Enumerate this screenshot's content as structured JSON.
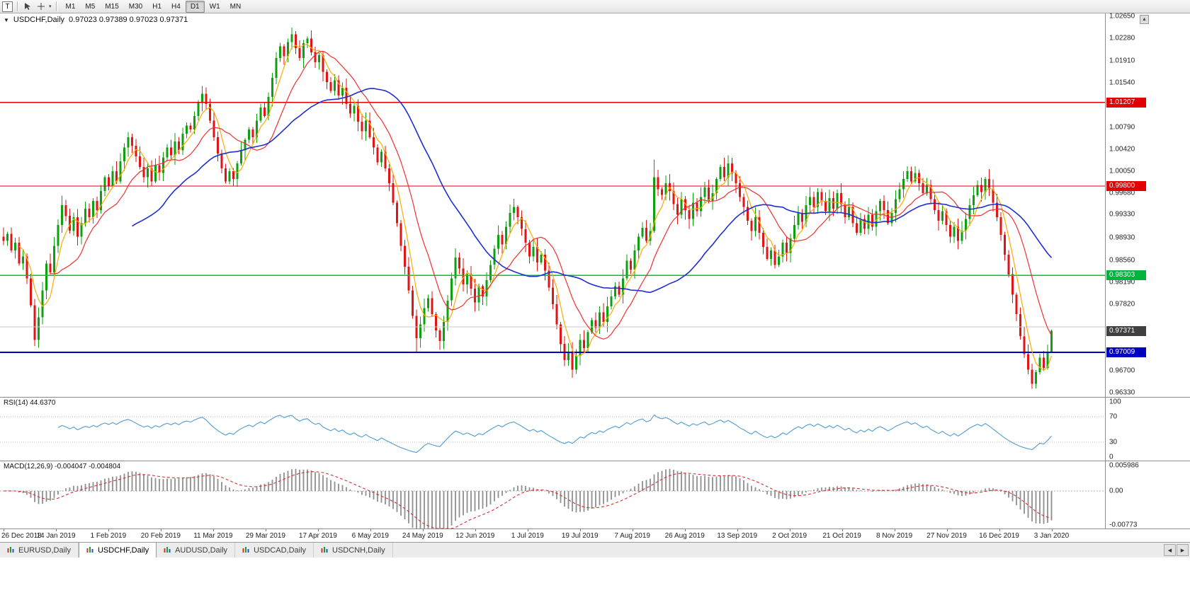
{
  "toolbar": {
    "tool_button_label": "T",
    "timeframes": [
      "M1",
      "M5",
      "M15",
      "M30",
      "H1",
      "H4",
      "D1",
      "W1",
      "MN"
    ],
    "active_timeframe": "D1",
    "corner_button": "▲"
  },
  "chart": {
    "header": {
      "dropdown_glyph": "▼",
      "symbol_period": "USDCHF,Daily",
      "ohlc": "0.97023 0.97389 0.97023 0.97371"
    },
    "colors": {
      "up": "#0fa012",
      "down": "#e01515",
      "ma_fast": "#ffaa00",
      "ma_medium": "#f03030",
      "ma_slow": "#1f2fd0",
      "level_red": "#e00000",
      "level_green": "#00c432",
      "level_blue": "#0000c0",
      "current_badge": "#404040",
      "rsi_line": "#4f9bd5",
      "macd_hist": "#8f8f8f",
      "macd_signal": "#d43131"
    },
    "y_range": [
      0.9625,
      1.027
    ],
    "price_axis_labels": [
      "1.02650",
      "1.02280",
      "1.01910",
      "1.01540",
      "1.00790",
      "1.00420",
      "1.00050",
      "0.99680",
      "0.99330",
      "0.98930",
      "0.98560",
      "0.98190",
      "0.97820",
      "0.96700",
      "0.96330"
    ],
    "levels": [
      {
        "name": "resistance-line-1",
        "price": 1.01207,
        "label": "1.01207",
        "type": "red"
      },
      {
        "name": "resistance-line-2",
        "price": 0.998,
        "label": "0.99800",
        "type": "red"
      },
      {
        "name": "support-line-green",
        "price": 0.98303,
        "label": "0.98303",
        "type": "green"
      },
      {
        "name": "support-line-blue",
        "price": 0.97009,
        "label": "0.97009",
        "type": "blue"
      },
      {
        "name": "gray-line",
        "price": 0.9744,
        "label": "",
        "type": "gray"
      }
    ],
    "current_price": {
      "price": 0.97371,
      "label": "0.97371"
    }
  },
  "chart_data": {
    "type": "candlestick",
    "symbol": "USDCHF",
    "period": "Daily",
    "first_open": 0.9895,
    "closes": [
      0.9888,
      0.99,
      0.9872,
      0.9885,
      0.985,
      0.9862,
      0.9825,
      0.978,
      0.9722,
      0.976,
      0.9805,
      0.985,
      0.9835,
      0.988,
      0.9915,
      0.9948,
      0.993,
      0.9905,
      0.9928,
      0.9895,
      0.9918,
      0.9942,
      0.9928,
      0.9955,
      0.994,
      0.9972,
      0.9995,
      0.998,
      1.0005,
      0.9988,
      1.0022,
      1.0045,
      1.0062,
      1.0048,
      1.003,
      1.0012,
      0.9995,
      1.001,
      0.9988,
      1.0015,
      1.0002,
      1.0028,
      1.0045,
      1.0032,
      1.0055,
      1.004,
      1.0068,
      1.0082,
      1.0075,
      1.0098,
      1.012,
      1.0135,
      1.0118,
      1.009,
      1.0062,
      1.0035,
      1.001,
      0.9988,
      1.0005,
      0.9992,
      1.0018,
      1.004,
      1.0058,
      1.0075,
      1.0062,
      1.009,
      1.0112,
      1.0098,
      1.013,
      1.0162,
      1.0195,
      1.0215,
      1.0198,
      1.0222,
      1.0235,
      1.0212,
      1.0195,
      1.022,
      1.0228,
      1.0205,
      1.0188,
      1.02,
      1.0172,
      1.0155,
      1.014,
      1.0158,
      1.0132,
      1.0145,
      1.0118,
      1.0102,
      1.0115,
      1.0088,
      1.0072,
      1.009,
      1.0062,
      1.0045,
      1.002,
      1.0038,
      1.001,
      0.9985,
      0.9952,
      0.9918,
      0.988,
      0.9845,
      0.9805,
      0.9762,
      0.9725,
      0.9748,
      0.9775,
      0.9792,
      0.9765,
      0.9738,
      0.972,
      0.9752,
      0.9788,
      0.9825,
      0.986,
      0.9842,
      0.9815,
      0.9832,
      0.9808,
      0.9785,
      0.9812,
      0.9795,
      0.9822,
      0.9848,
      0.9875,
      0.9898,
      0.9882,
      0.9912,
      0.9935,
      0.9945,
      0.9928,
      0.9908,
      0.9885,
      0.9862,
      0.9878,
      0.9852,
      0.9865,
      0.9838,
      0.981,
      0.9782,
      0.9748,
      0.9715,
      0.9688,
      0.9702,
      0.9672,
      0.9695,
      0.9722,
      0.9708,
      0.9735,
      0.9755,
      0.9742,
      0.9768,
      0.9752,
      0.9778,
      0.9795,
      0.9812,
      0.9798,
      0.9825,
      0.9855,
      0.984,
      0.9872,
      0.9895,
      0.991,
      0.9888,
      0.9905,
      0.9995,
      0.9975,
      0.9965,
      0.9985,
      0.9972,
      0.995,
      0.9932,
      0.9958,
      0.994,
      0.9925,
      0.9952,
      0.9938,
      0.9962,
      0.9978,
      0.9955,
      0.9968,
      0.9992,
      1.0012,
      0.9995,
      1.0018,
      1.0002,
      0.9985,
      0.9962,
      0.9945,
      0.9922,
      0.9905,
      0.9928,
      0.9902,
      0.9878,
      0.9858,
      0.9872,
      0.9848,
      0.9862,
      0.9885,
      0.9868,
      0.9892,
      0.9915,
      0.9935,
      0.992,
      0.9948,
      0.9962,
      0.9945,
      0.997,
      0.9955,
      0.9938,
      0.996,
      0.9942,
      0.9968,
      0.995,
      0.9928,
      0.9945,
      0.9918,
      0.9902,
      0.9925,
      0.9908,
      0.9932,
      0.9912,
      0.9938,
      0.9955,
      0.994,
      0.9918,
      0.9935,
      0.9958,
      0.9975,
      0.9992,
      1.0005,
      0.9988,
      1.0002,
      0.9985,
      0.9968,
      0.9982,
      0.9958,
      0.994,
      0.9922,
      0.9938,
      0.9915,
      0.9895,
      0.9912,
      0.9888,
      0.9905,
      0.9925,
      0.9948,
      0.9965,
      0.9982,
      0.997,
      0.9992,
      0.9975,
      0.9952,
      0.9928,
      0.9898,
      0.9865,
      0.9832,
      0.9798,
      0.9765,
      0.9728,
      0.9698,
      0.9672,
      0.9648,
      0.9668,
      0.9692,
      0.9675,
      0.97023,
      0.97371
    ],
    "last_candle": {
      "open": 0.97023,
      "high": 0.97389,
      "low": 0.97023,
      "close": 0.97371
    },
    "high_overrides": {
      "51": 1.0148,
      "74": 1.0246,
      "167": 1.0025,
      "186": 1.0032
    },
    "low_overrides": {
      "8": 0.9712,
      "106": 0.97,
      "112": 0.9705,
      "146": 0.9658,
      "264": 0.964
    },
    "overlays": [
      {
        "name": "ma-fast",
        "period": 5
      },
      {
        "name": "ma-medium",
        "period": 13
      },
      {
        "name": "ma-slow",
        "period": 34
      }
    ],
    "x_labels": [
      "26 Dec 2018",
      "14 Jan 2019",
      "1 Feb 2019",
      "20 Feb 2019",
      "11 Mar 2019",
      "29 Mar 2019",
      "17 Apr 2019",
      "6 May 2019",
      "24 May 2019",
      "12 Jun 2019",
      "1 Jul 2019",
      "19 Jul 2019",
      "7 Aug 2019",
      "26 Aug 2019",
      "13 Sep 2019",
      "2 Oct 2019",
      "21 Oct 2019",
      "8 Nov 2019",
      "27 Nov 2019",
      "16 Dec 2019",
      "3 Jan 2020"
    ]
  },
  "rsi": {
    "label": "RSI(14) 44.6370",
    "period": 14,
    "range": [
      0,
      100
    ],
    "dotted": [
      70,
      30
    ],
    "axis": [
      {
        "text": "100",
        "value": 100
      },
      {
        "text": "70",
        "value": 70
      },
      {
        "text": "30",
        "value": 30
      },
      {
        "text": "0",
        "value": 0
      }
    ]
  },
  "macd": {
    "label": "MACD(12,26,9) -0.004047 -0.004804",
    "params": [
      12,
      26,
      9
    ],
    "range": [
      -0.0085,
      0.0066
    ],
    "axis": [
      {
        "text": "0.005986",
        "value": 0.005986
      },
      {
        "text": "0.00",
        "value": 0
      },
      {
        "text": "-0.00773",
        "value": -0.00773
      }
    ]
  },
  "tab_bar": {
    "tabs": [
      {
        "label": "EURUSD,Daily",
        "active": false
      },
      {
        "label": "USDCHF,Daily",
        "active": true
      },
      {
        "label": "AUDUSD,Daily",
        "active": false
      },
      {
        "label": "USDCAD,Daily",
        "active": false
      },
      {
        "label": "USDCNH,Daily",
        "active": false
      }
    ],
    "scroll_left": "◀",
    "scroll_right": "▶"
  }
}
